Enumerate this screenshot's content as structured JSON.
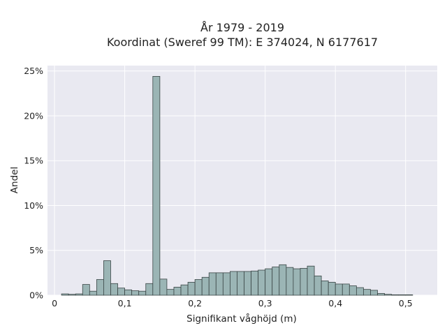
{
  "chart_data": {
    "type": "bar",
    "title": [
      "År 1979 - 2019",
      "Koordinat (Sweref 99 TM): E 374024, N 6177617"
    ],
    "xlabel": "Signifikant våghöjd (m)",
    "ylabel": "Andel",
    "xlim": [
      -0.01,
      0.545
    ],
    "ylim": [
      0,
      25.6
    ],
    "x_ticks": [
      0,
      0.1,
      0.2,
      0.3,
      0.4,
      0.5
    ],
    "x_tick_labels": [
      "0",
      "0,1",
      "0,2",
      "0,3",
      "0,4",
      "0,5"
    ],
    "y_ticks": [
      0,
      5,
      10,
      15,
      20,
      25
    ],
    "y_tick_labels": [
      "0%",
      "5%",
      "10%",
      "15%",
      "20%",
      "25%"
    ],
    "grid": true,
    "bin_width": 0.01,
    "bin_starts": [
      0.01,
      0.02,
      0.03,
      0.04,
      0.05,
      0.06,
      0.07,
      0.08,
      0.09,
      0.1,
      0.11,
      0.12,
      0.13,
      0.14,
      0.15,
      0.16,
      0.17,
      0.18,
      0.19,
      0.2,
      0.21,
      0.22,
      0.23,
      0.24,
      0.25,
      0.26,
      0.27,
      0.28,
      0.29,
      0.3,
      0.31,
      0.32,
      0.33,
      0.34,
      0.35,
      0.36,
      0.37,
      0.38,
      0.39,
      0.4,
      0.41,
      0.42,
      0.43,
      0.44,
      0.45,
      0.46,
      0.47,
      0.48,
      0.49,
      0.5
    ],
    "values": [
      0.15,
      0.1,
      0.15,
      1.2,
      0.45,
      1.75,
      3.85,
      1.3,
      0.8,
      0.6,
      0.5,
      0.45,
      1.3,
      24.4,
      1.8,
      0.65,
      0.9,
      1.15,
      1.45,
      1.75,
      2.0,
      2.5,
      2.5,
      2.5,
      2.65,
      2.65,
      2.65,
      2.7,
      2.8,
      2.95,
      3.15,
      3.4,
      3.1,
      2.95,
      3.0,
      3.25,
      2.15,
      1.6,
      1.45,
      1.25,
      1.25,
      1.05,
      0.85,
      0.65,
      0.55,
      0.2,
      0.1,
      0.05,
      0.05,
      0.05
    ],
    "colors": {
      "bar_fill": "#9bb5b5",
      "bar_edge": "#3a4545",
      "plot_bg": "#e9e9f1",
      "grid": "#ffffff"
    }
  }
}
